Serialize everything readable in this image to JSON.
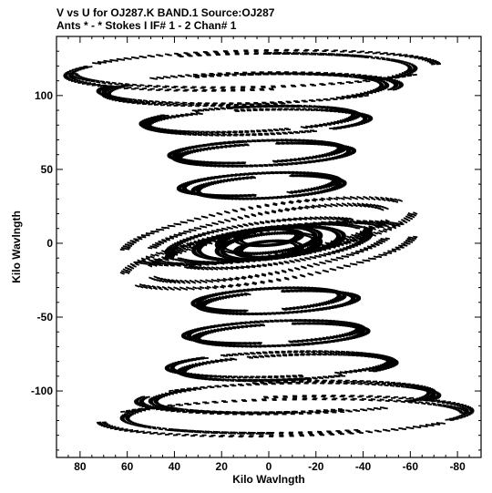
{
  "chart_data": {
    "type": "scatter",
    "title": "V vs U for OJ287.K BAND.1   Source:OJ287",
    "subtitle": "Ants * - *     Stokes I   IF# 1 - 2   Chan# 1",
    "xlabel": "Kilo Wavlngth",
    "ylabel": "Kilo Wavlngth",
    "xlim": [
      90,
      -90
    ],
    "ylim": [
      -145,
      140
    ],
    "x_ticks": [
      80,
      60,
      40,
      20,
      0,
      -20,
      -40,
      -60,
      -80
    ],
    "x_tick_labels": [
      "80",
      "60",
      "40",
      "20",
      "0",
      "-20",
      "-40",
      "-60",
      "-80"
    ],
    "y_ticks": [
      100,
      50,
      0,
      -50,
      -100
    ],
    "y_tick_labels": [
      "100",
      "50",
      "0",
      "-50",
      "-100"
    ],
    "grid": false,
    "point_color": "#000000",
    "uv_tracks": [
      {
        "cx": 12,
        "cy": 116,
        "rx": 72,
        "ry": 12,
        "tilt": -2,
        "arcs": [
          [
            100,
            220
          ],
          [
            260,
            390
          ],
          [
            430,
            500
          ]
        ]
      },
      {
        "cx": 10,
        "cy": 104,
        "rx": 58,
        "ry": 10,
        "tilt": -3,
        "arcs": [
          [
            90,
            230
          ],
          [
            255,
            395
          ],
          [
            430,
            500
          ]
        ]
      },
      {
        "cx": 8,
        "cy": 84,
        "rx": 44,
        "ry": 8,
        "tilt": -4,
        "arcs": [
          [
            80,
            240
          ],
          [
            250,
            400
          ],
          [
            420,
            480
          ]
        ]
      },
      {
        "cx": 5,
        "cy": 62,
        "rx": 35,
        "ry": 7,
        "tilt": -4,
        "arcs": [
          [
            60,
            260
          ],
          [
            280,
            440
          ]
        ]
      },
      {
        "cx": 4,
        "cy": 40,
        "rx": 32,
        "ry": 7,
        "tilt": -5,
        "arcs": [
          [
            40,
            250
          ],
          [
            275,
            420
          ]
        ]
      },
      {
        "cx": 0,
        "cy": 8,
        "rx": 62,
        "ry": 17,
        "tilt": -14,
        "arcs": [
          [
            10,
            160
          ],
          [
            190,
            340
          ]
        ]
      },
      {
        "cx": 0,
        "cy": 6,
        "rx": 52,
        "ry": 14,
        "tilt": -16,
        "arcs": [
          [
            20,
            170
          ],
          [
            200,
            350
          ]
        ]
      },
      {
        "cx": 0,
        "cy": 2,
        "rx": 42,
        "ry": 12,
        "tilt": -12,
        "arcs": [
          [
            0,
            150
          ],
          [
            180,
            340
          ]
        ]
      },
      {
        "cx": 0,
        "cy": 0,
        "rx": 30,
        "ry": 10,
        "tilt": -10,
        "arcs": [
          [
            0,
            360
          ]
        ]
      },
      {
        "cx": 0,
        "cy": -2,
        "rx": 20,
        "ry": 8,
        "tilt": -10,
        "arcs": [
          [
            0,
            360
          ]
        ]
      },
      {
        "cx": 0,
        "cy": -4,
        "rx": 12,
        "ry": 5,
        "tilt": -8,
        "arcs": [
          [
            0,
            360
          ]
        ]
      },
      {
        "cx": 0,
        "cy": -38,
        "rx": 30,
        "ry": 7,
        "tilt": -5,
        "arcs": [
          [
            70,
            260
          ],
          [
            290,
            430
          ]
        ]
      },
      {
        "cx": -2,
        "cy": -60,
        "rx": 36,
        "ry": 7,
        "tilt": -4,
        "arcs": [
          [
            80,
            260
          ],
          [
            280,
            440
          ]
        ]
      },
      {
        "cx": -5,
        "cy": -82,
        "rx": 46,
        "ry": 8,
        "tilt": -3,
        "arcs": [
          [
            60,
            240
          ],
          [
            260,
            410
          ]
        ]
      },
      {
        "cx": -8,
        "cy": -105,
        "rx": 62,
        "ry": 10,
        "tilt": -2,
        "arcs": [
          [
            40,
            200
          ],
          [
            230,
            380
          ]
        ]
      },
      {
        "cx": -6,
        "cy": -118,
        "rx": 76,
        "ry": 12,
        "tilt": -2,
        "arcs": [
          [
            30,
            180
          ],
          [
            210,
            360
          ]
        ]
      }
    ]
  }
}
